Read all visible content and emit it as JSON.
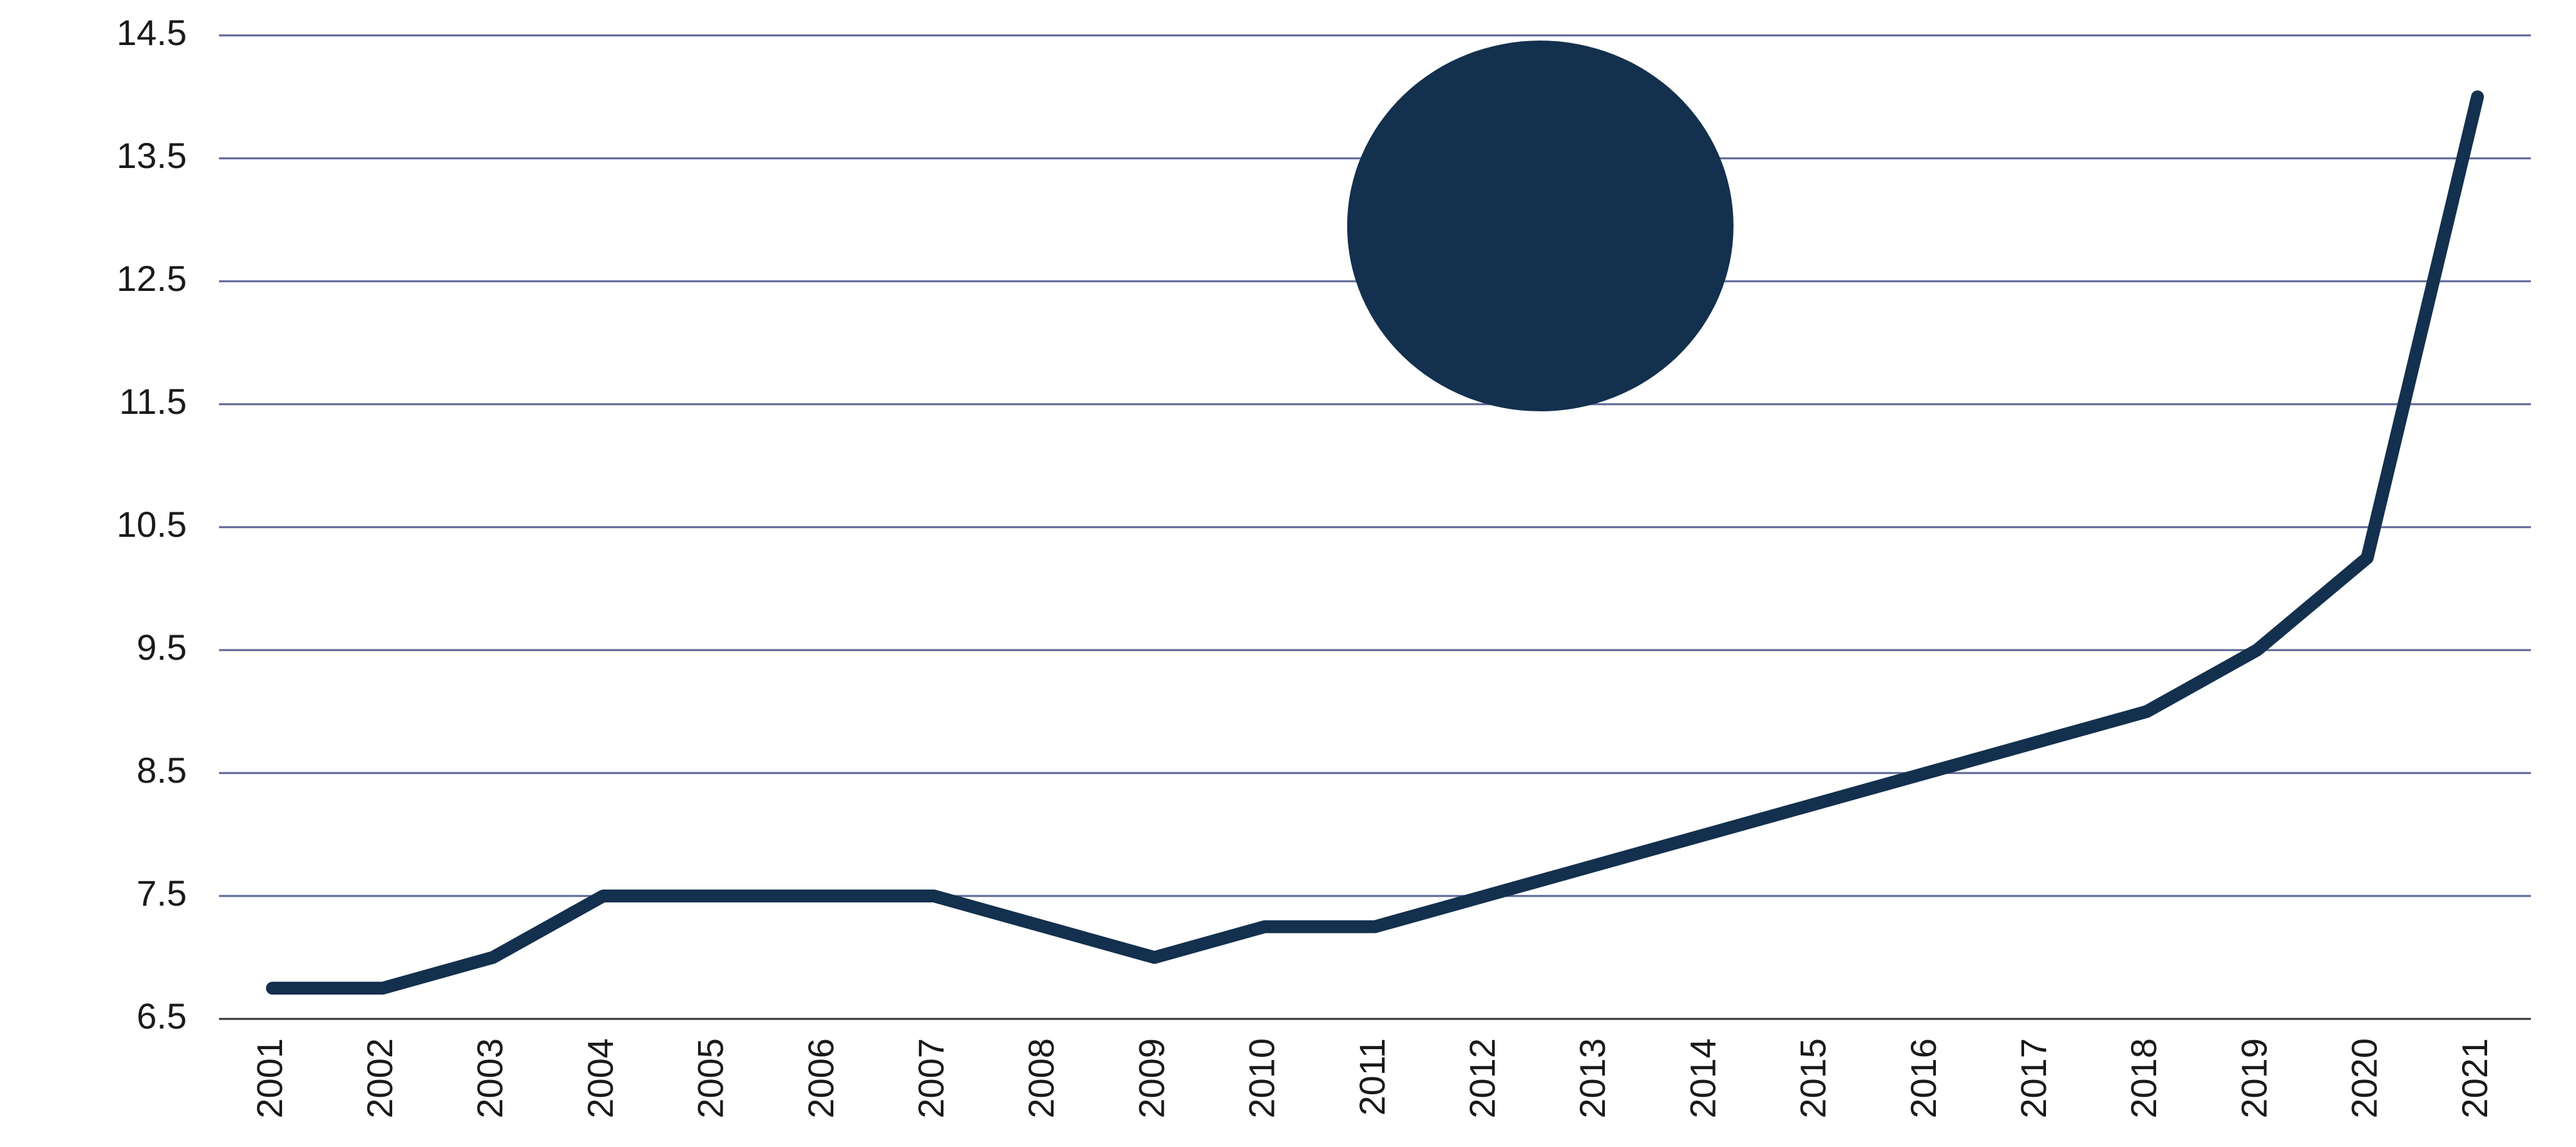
{
  "chart_data": {
    "type": "line",
    "title": "",
    "xlabel": "",
    "ylabel": "",
    "x": [
      "2001",
      "2002",
      "2003",
      "2004",
      "2005",
      "2006",
      "2007",
      "2008",
      "2009",
      "2010",
      "2011",
      "2012",
      "2013",
      "2014",
      "2015",
      "2016",
      "2017",
      "2018",
      "2019",
      "2020",
      "2021"
    ],
    "series": [
      {
        "values": [
          6.75,
          6.75,
          7.0,
          7.5,
          7.5,
          7.5,
          7.5,
          7.25,
          7.0,
          7.25,
          7.25,
          7.5,
          7.75,
          8.0,
          8.25,
          8.5,
          8.75,
          9.0,
          9.5,
          10.25,
          14.0
        ],
        "color": "#13304e"
      }
    ],
    "ylim": [
      6.5,
      14.5
    ],
    "yticks": [
      "6.5",
      "7.5",
      "8.5",
      "9.5",
      "10.5",
      "11.5",
      "12.5",
      "13.5",
      "14.5"
    ],
    "grid": true,
    "legend": "none",
    "annotations": [
      {
        "shape": "ellipse",
        "x": "2012.5",
        "y": 12.95,
        "color": "#13304e"
      }
    ]
  }
}
